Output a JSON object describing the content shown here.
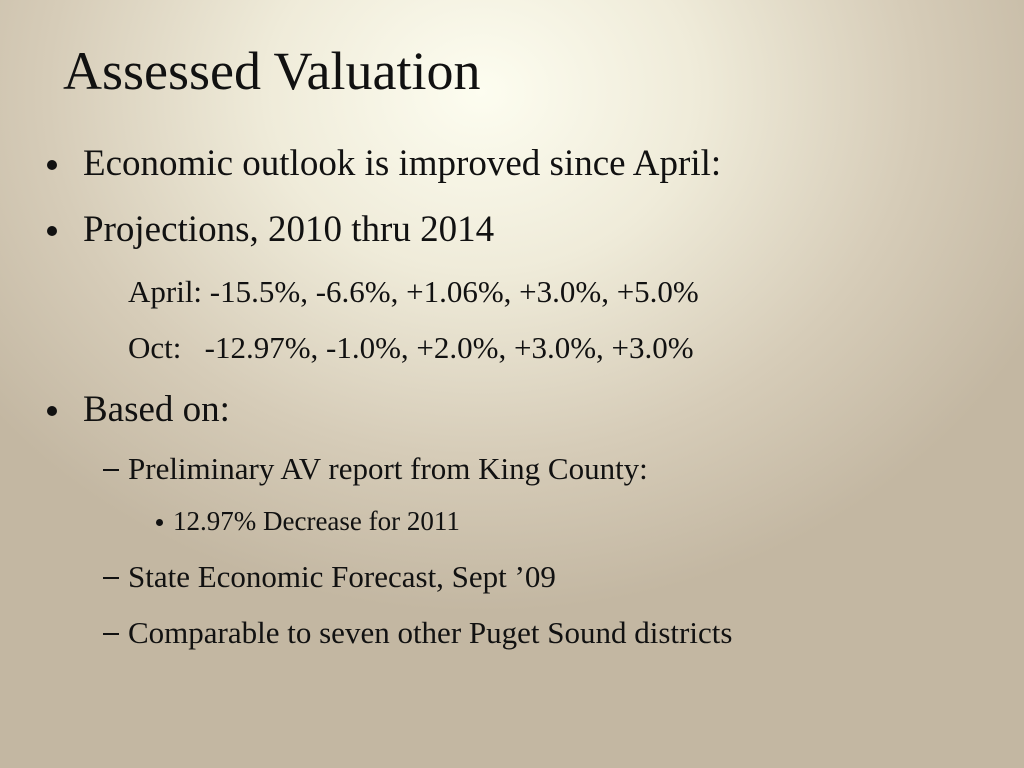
{
  "title": "Assessed Valuation",
  "body": [
    "Economic outlook is improved since April:",
    "Projections, 2010 thru 2014",
    "April: -15.5%, -6.6%, +1.06%, +3.0%, +5.0%",
    "Oct:   -12.97%, -1.0%, +2.0%, +3.0%, +3.0%",
    "Based on:",
    "Preliminary AV report from King County:",
    "12.97% Decrease for 2011",
    "State Economic Forecast, Sept ’09",
    "Comparable to seven other Puget Sound districts"
  ]
}
